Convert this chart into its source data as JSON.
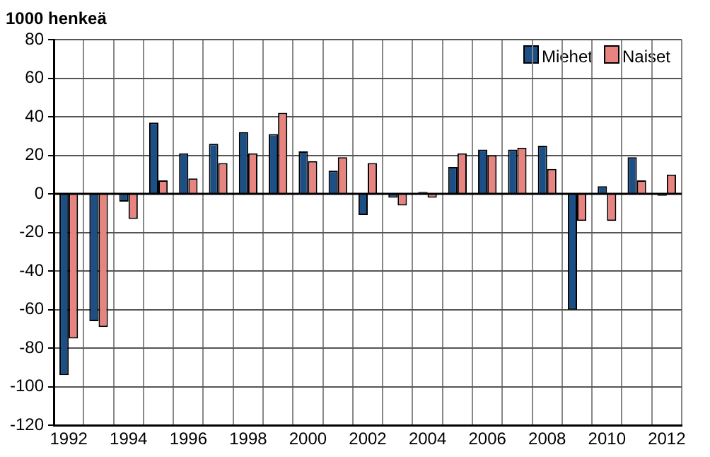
{
  "chart_data": {
    "type": "bar",
    "ylabel": "1000 henkeä",
    "categories": [
      "1992",
      null,
      "1994",
      null,
      "1996",
      null,
      "1998",
      null,
      "2000",
      null,
      "2002",
      null,
      "2004",
      null,
      "2006",
      null,
      "2008",
      null,
      "2010",
      null,
      "2012"
    ],
    "series": [
      {
        "name": "Miehet",
        "color": "#1c4f86",
        "values": [
          -94,
          -66,
          -4,
          37,
          21,
          26,
          32,
          31,
          22,
          12,
          -11,
          -2,
          1,
          14,
          23,
          23,
          25,
          -60,
          4,
          19,
          -1
        ]
      },
      {
        "name": "Naiset",
        "color": "#e8847f",
        "values": [
          -75,
          -69,
          -13,
          7,
          8,
          16,
          21,
          42,
          17,
          19,
          16,
          -6,
          -2,
          21,
          20,
          24,
          13,
          -14,
          -14,
          7,
          10
        ]
      }
    ],
    "ylim": [
      -120,
      80
    ],
    "yticks": [
      -120,
      -100,
      -80,
      -60,
      -40,
      -20,
      0,
      20,
      40,
      60,
      80
    ],
    "grid": true,
    "legend": "top right"
  }
}
